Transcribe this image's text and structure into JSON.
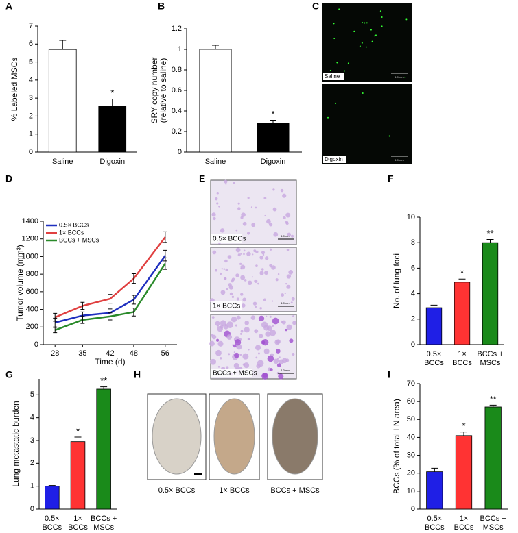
{
  "chart_data": [
    {
      "type": "bar",
      "panel": "A",
      "ylabel": [
        "% Labeled MSCs"
      ],
      "categories": [
        [
          "Saline"
        ],
        [
          "Digoxin"
        ]
      ],
      "values": [
        5.7,
        2.55
      ],
      "errors": [
        0.5,
        0.4
      ],
      "colors": [
        "#ffffff",
        "#000000"
      ],
      "annotations": [
        null,
        "*"
      ],
      "ylim": [
        0,
        7
      ],
      "yticks": [
        0,
        1,
        2,
        3,
        4,
        5,
        6,
        7
      ]
    },
    {
      "type": "bar",
      "panel": "B",
      "ylabel": [
        "SRY copy number",
        "(relative to saline)"
      ],
      "categories": [
        [
          "Saline"
        ],
        [
          "Digoxin"
        ]
      ],
      "values": [
        1.0,
        0.28
      ],
      "errors": [
        0.04,
        0.03
      ],
      "colors": [
        "#ffffff",
        "#000000"
      ],
      "annotations": [
        null,
        "*"
      ],
      "ylim": [
        0,
        1.2
      ],
      "yticks": [
        0,
        0.2,
        0.4,
        0.6,
        0.8,
        1,
        1.2
      ]
    },
    {
      "type": "line",
      "panel": "D",
      "xlabel": "Time (d)",
      "ylabel": [
        "Tumor volume (mm³)"
      ],
      "x": [
        28,
        35,
        42,
        48,
        56
      ],
      "xlim": [
        25,
        59
      ],
      "xticks": [
        28,
        35,
        42,
        48,
        56
      ],
      "ylim": [
        0,
        1400
      ],
      "yticks": [
        0,
        200,
        400,
        600,
        800,
        1000,
        1200,
        1400
      ],
      "legend": "upper left",
      "series": [
        {
          "name": "0.5× BCCs",
          "color": "#1f2fbf",
          "values": [
            250,
            330,
            360,
            510,
            1010
          ],
          "errors": [
            50,
            40,
            45,
            50,
            60
          ]
        },
        {
          "name": "1× BCCs",
          "color": "#e04040",
          "values": [
            310,
            440,
            520,
            750,
            1220
          ],
          "errors": [
            45,
            40,
            50,
            55,
            60
          ]
        },
        {
          "name": "BCCs + MSCs",
          "color": "#2a8a2a",
          "values": [
            165,
            280,
            320,
            370,
            920
          ],
          "errors": [
            30,
            40,
            40,
            45,
            65
          ]
        }
      ]
    },
    {
      "type": "bar",
      "panel": "F",
      "ylabel": [
        "No. of lung foci"
      ],
      "categories": [
        [
          "0.5×",
          "BCCs"
        ],
        [
          "1×",
          "BCCs"
        ],
        [
          "BCCs +",
          "MSCs"
        ]
      ],
      "values": [
        2.9,
        4.9,
        8.0
      ],
      "errors": [
        0.2,
        0.25,
        0.25
      ],
      "colors": [
        "#1f1fe6",
        "#ff3333",
        "#1a8a1a"
      ],
      "annotations": [
        null,
        "*",
        "**"
      ],
      "ylim": [
        0,
        10
      ],
      "yticks": [
        0,
        2,
        4,
        6,
        8,
        10
      ]
    },
    {
      "type": "bar",
      "panel": "G",
      "ylabel": [
        "Lung metastatic burden"
      ],
      "categories": [
        [
          "0.5×",
          "BCCs"
        ],
        [
          "1×",
          "BCCs"
        ],
        [
          "BCCs +",
          "MSCs"
        ]
      ],
      "values": [
        1.0,
        2.95,
        5.25
      ],
      "errors": [
        0.03,
        0.2,
        0.1
      ],
      "colors": [
        "#1f1fe6",
        "#ff3333",
        "#1a8a1a"
      ],
      "annotations": [
        null,
        "*",
        "**"
      ],
      "ylim": [
        0,
        5.7
      ],
      "yticks": [
        0,
        1,
        2,
        3,
        4,
        5
      ]
    },
    {
      "type": "bar",
      "panel": "I",
      "ylabel": [
        "BCCs (% of total LN area)"
      ],
      "categories": [
        [
          "0.5×",
          "BCCs"
        ],
        [
          "1×",
          "BCCs"
        ],
        [
          "BCCs +",
          "MSCs"
        ]
      ],
      "values": [
        20.8,
        41,
        57
      ],
      "errors": [
        2,
        2,
        1
      ],
      "colors": [
        "#1f1fe6",
        "#ff3333",
        "#1a8a1a"
      ],
      "annotations": [
        null,
        "*",
        "**"
      ],
      "ylim": [
        0,
        70
      ],
      "yticks": [
        0,
        10,
        20,
        30,
        40,
        50,
        60,
        70
      ]
    }
  ],
  "image_panels": [
    {
      "panel": "C",
      "labels": [
        "Saline",
        "Digoxin"
      ],
      "scale_labels": [
        "1.0 mm",
        "1.0 mm"
      ]
    },
    {
      "panel": "E",
      "labels": [
        "0.5× BCCs",
        "1× BCCs",
        "BCCs + MSCs"
      ],
      "scale_labels": [
        "1.0 mm",
        "1.0 mm",
        "1.0 mm"
      ]
    },
    {
      "panel": "H",
      "labels": [
        "0.5× BCCs",
        "1× BCCs",
        "BCCs + MSCs"
      ]
    }
  ]
}
